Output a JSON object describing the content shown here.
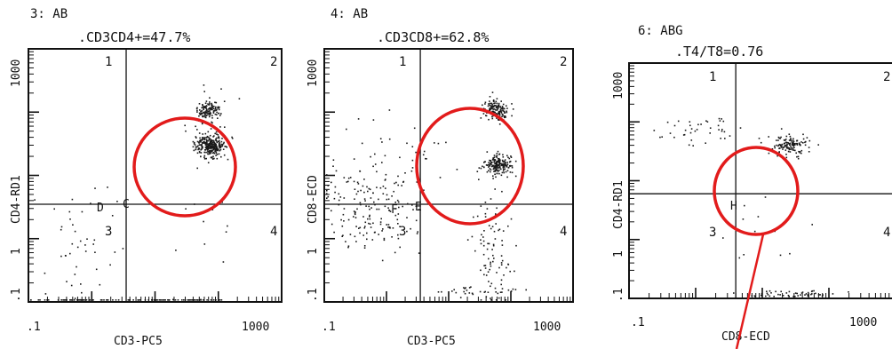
{
  "chart_data": [
    {
      "type": "scatter",
      "panel_label": "3: AB",
      "title": ".CD3CD4+=47.7%",
      "xlabel": "CD3-PC5",
      "ylabel": "CD4-RD1",
      "xlim": [
        0.1,
        1000
      ],
      "ylim": [
        0.1,
        1000
      ],
      "x_tick_labels": [
        ".1",
        "1000"
      ],
      "y_tick_labels": [
        ".1",
        "1",
        "1000"
      ],
      "quadrant_labels": [
        "1",
        "2",
        "3",
        "4"
      ],
      "gate_labels": [
        "D",
        "C"
      ],
      "cut": [
        3.5,
        3.5
      ],
      "clusters": [
        {
          "x": 70,
          "y": 30,
          "sx": 0.12,
          "sy": 0.09,
          "n": 280
        },
        {
          "x": 70,
          "y": 110,
          "sx": 0.1,
          "sy": 0.07,
          "n": 110
        },
        {
          "x": 70,
          "y": 60,
          "sx": 0.2,
          "sy": 0.25,
          "n": 50
        },
        {
          "x": 0.6,
          "y": 0.8,
          "sx": 0.35,
          "sy": 0.45,
          "n": 42
        },
        {
          "x": 60,
          "y": 1.5,
          "sx": 0.3,
          "sy": 0.4,
          "n": 10
        },
        {
          "x": 20,
          "y": 0.1,
          "sx": 0.5,
          "sy": 0.02,
          "n": 60
        },
        {
          "x": 0.5,
          "y": 0.1,
          "sx": 0.4,
          "sy": 0.02,
          "n": 45
        }
      ]
    },
    {
      "type": "scatter",
      "panel_label": "4: AB",
      "title": ".CD3CD8+=62.8%",
      "xlabel": "CD3-PC5",
      "ylabel": "CD8-ECD",
      "xlim": [
        0.1,
        1000
      ],
      "ylim": [
        0.1,
        1000
      ],
      "x_tick_labels": [
        ".1",
        "1000"
      ],
      "y_tick_labels": [
        ".1",
        "1",
        "1000"
      ],
      "quadrant_labels": [
        "1",
        "2",
        "3",
        "4"
      ],
      "gate_labels": [
        "F",
        "E"
      ],
      "cut": [
        3.5,
        3.5
      ],
      "clusters": [
        {
          "x": 55,
          "y": 110,
          "sx": 0.1,
          "sy": 0.08,
          "n": 150
        },
        {
          "x": 60,
          "y": 15,
          "sx": 0.12,
          "sy": 0.08,
          "n": 190
        },
        {
          "x": 50,
          "y": 0.8,
          "sx": 0.15,
          "sy": 0.45,
          "n": 90
        },
        {
          "x": 0.6,
          "y": 3,
          "sx": 0.4,
          "sy": 0.35,
          "n": 180
        },
        {
          "x": 2,
          "y": 20,
          "sx": 0.45,
          "sy": 0.3,
          "n": 30
        },
        {
          "x": 30,
          "y": 0.15,
          "sx": 0.35,
          "sy": 0.05,
          "n": 30
        }
      ]
    },
    {
      "type": "scatter",
      "panel_label": "6: ABG",
      "title": ".T4/T8=0.76",
      "xlabel": "CD8-ECD",
      "ylabel": "CD4-RD1",
      "xlim": [
        0.1,
        1000
      ],
      "ylim": [
        0.1,
        1000
      ],
      "x_tick_labels": [
        ".1",
        "1000"
      ],
      "y_tick_labels": [
        ".1",
        "1",
        "1000"
      ],
      "quadrant_labels": [
        "1",
        "2",
        "3",
        "4"
      ],
      "gate_labels": [
        "H"
      ],
      "cut": [
        4,
        6
      ],
      "clusters": [
        {
          "x": 25,
          "y": 40,
          "sx": 0.15,
          "sy": 0.1,
          "n": 130
        },
        {
          "x": 1.2,
          "y": 80,
          "sx": 0.4,
          "sy": 0.12,
          "n": 40
        },
        {
          "x": 10,
          "y": 1,
          "sx": 0.35,
          "sy": 0.4,
          "n": 12
        },
        {
          "x": 25,
          "y": 0.12,
          "sx": 0.4,
          "sy": 0.03,
          "n": 50
        }
      ]
    }
  ],
  "highlight_color": "#e21b1b"
}
